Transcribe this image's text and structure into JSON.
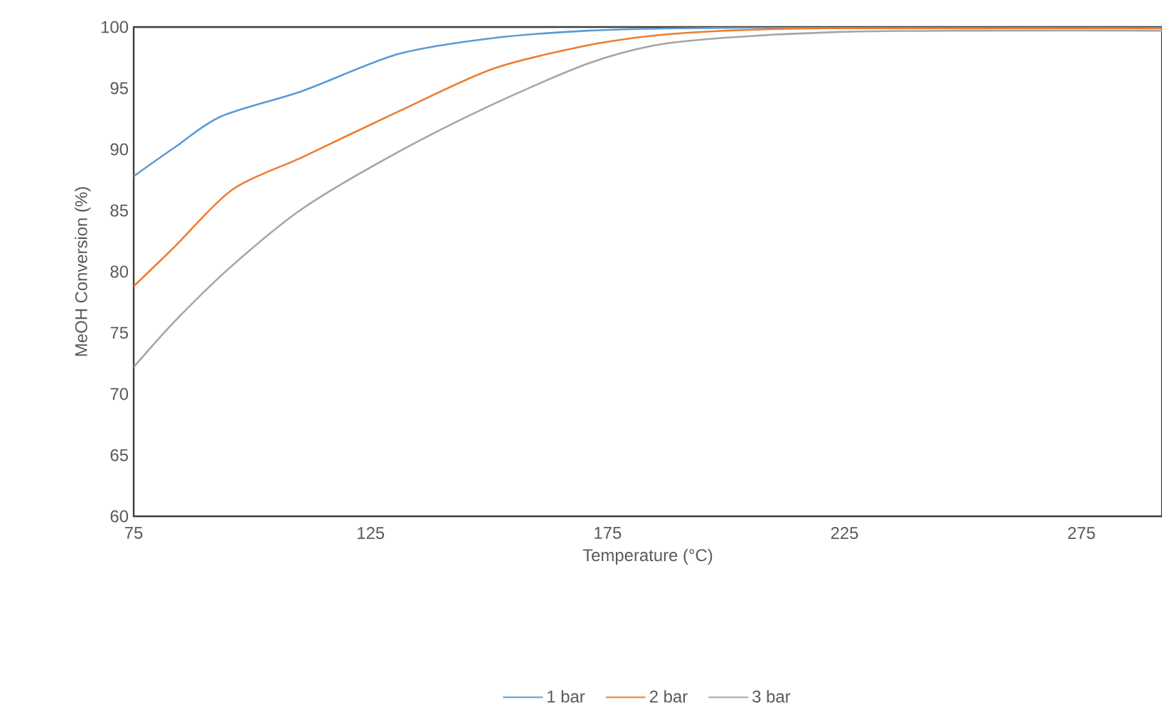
{
  "chart_data": {
    "type": "line",
    "xlabel": "Temperature (°C)",
    "ylabel": "MeOH Conversion (%)",
    "xlim": [
      75,
      292
    ],
    "xticks": [
      75,
      125,
      175,
      225,
      275
    ],
    "ylim": [
      60,
      100
    ],
    "yticks": [
      60,
      65,
      70,
      75,
      80,
      85,
      90,
      95,
      100
    ],
    "legend": "bottom",
    "line_style": "solid",
    "series": [
      {
        "name": "1 bar",
        "color": "#5b9bd5",
        "x": [
          75,
          83.8,
          93.5,
          110.8,
          130.9,
          150.9,
          170.8,
          190,
          225,
          275,
          292
        ],
        "values": [
          87.8,
          90.2,
          92.7,
          94.8,
          97.8,
          99.1,
          99.7,
          99.9,
          100,
          100,
          100
        ]
      },
      {
        "name": "2 bar",
        "color": "#ed7d31",
        "x": [
          75,
          83.8,
          95.8,
          110.8,
          130.9,
          150.9,
          170.8,
          184.9,
          200,
          220,
          250,
          292
        ],
        "values": [
          78.8,
          82.1,
          86.7,
          89.4,
          93.1,
          96.6,
          98.5,
          99.3,
          99.7,
          99.9,
          99.9,
          99.9
        ]
      },
      {
        "name": "3 bar",
        "color": "#a5a5a5",
        "x": [
          75,
          83.8,
          95.8,
          110.8,
          130.9,
          150.9,
          170.8,
          184.9,
          198.9,
          223.9,
          250,
          292
        ],
        "values": [
          72.2,
          76.0,
          80.5,
          85.2,
          89.8,
          93.7,
          97.0,
          98.5,
          99.1,
          99.6,
          99.7,
          99.7
        ]
      }
    ]
  }
}
